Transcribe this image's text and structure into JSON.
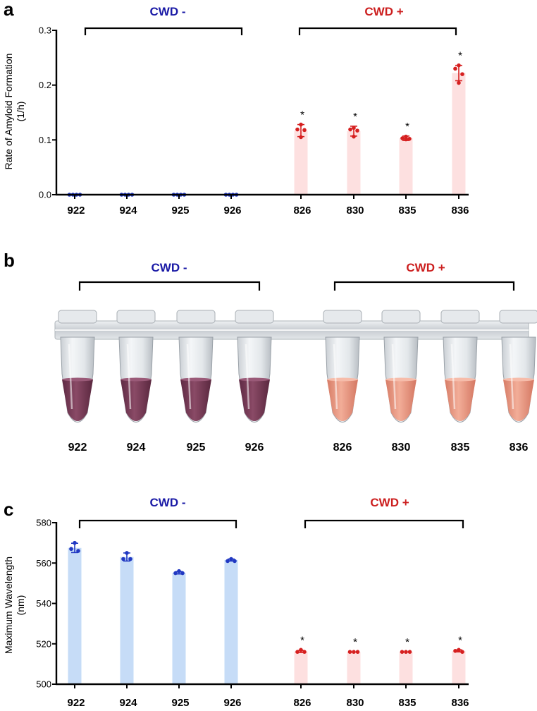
{
  "colors": {
    "cwd_neg": "#1a1aa6",
    "cwd_pos": "#cc1f1f",
    "neg_bar": "#c6dcf7",
    "pos_bar": "#fde0e0",
    "neg_dot": "#2138c2",
    "pos_dot": "#d62020",
    "tube_purple": "#7a3d57",
    "tube_pink": "#e99883"
  },
  "groups": {
    "negative": "CWD -",
    "positive": "CWD +"
  },
  "chart_data": [
    {
      "panel": "a",
      "type": "bar",
      "title": "",
      "ylabel_line1": "Rate of Amyloid Formation",
      "ylabel_line2": "(1/h)",
      "xlabel": "",
      "ylim": [
        0,
        0.3
      ],
      "yticks": [
        0.0,
        0.1,
        0.2,
        0.3
      ],
      "yticklabels": [
        "0.0",
        "0.1",
        "0.2",
        "0.3"
      ],
      "categories": [
        "922",
        "924",
        "925",
        "926",
        "826",
        "830",
        "835",
        "836"
      ],
      "values": [
        0,
        0,
        0,
        0,
        0.117,
        0.116,
        0.103,
        0.222
      ],
      "errors": [
        0,
        0,
        0,
        0,
        0.011,
        0.009,
        0.004,
        0.014
      ],
      "points": [
        [
          0,
          0,
          0,
          0
        ],
        [
          0,
          0,
          0,
          0
        ],
        [
          0,
          0,
          0,
          0
        ],
        [
          0,
          0,
          0,
          0
        ],
        [
          0.128,
          0.119,
          0.118,
          0.105
        ],
        [
          0.122,
          0.119,
          0.117,
          0.106
        ],
        [
          0.106,
          0.103,
          0.102,
          0.101
        ],
        [
          0.236,
          0.23,
          0.22,
          0.204
        ]
      ],
      "groups": [
        "neg",
        "neg",
        "neg",
        "neg",
        "pos",
        "pos",
        "pos",
        "pos"
      ],
      "significance": [
        "",
        "",
        "",
        "",
        "*",
        "*",
        "*",
        "*"
      ]
    },
    {
      "panel": "c",
      "type": "bar",
      "title": "",
      "ylabel_line1": "Maximum Wavelength",
      "ylabel_line2": "(nm)",
      "xlabel": "",
      "ylim": [
        500,
        580
      ],
      "yticks": [
        500,
        520,
        540,
        560,
        580
      ],
      "yticklabels": [
        "500",
        "520",
        "540",
        "560",
        "580"
      ],
      "categories": [
        "922",
        "924",
        "925",
        "926",
        "826",
        "830",
        "835",
        "836"
      ],
      "values": [
        567.5,
        563,
        555.2,
        561.5,
        516.2,
        516,
        516,
        516.5
      ],
      "errors": [
        2.3,
        2.0,
        0.6,
        0.5,
        0.5,
        0,
        0,
        0.5
      ],
      "points": [
        [
          570,
          567,
          566
        ],
        [
          565,
          562,
          562
        ],
        [
          556,
          555,
          555
        ],
        [
          562,
          561,
          561
        ],
        [
          517,
          516,
          516
        ],
        [
          516,
          516,
          516
        ],
        [
          516,
          516,
          516
        ],
        [
          517,
          516.5,
          516
        ]
      ],
      "groups": [
        "neg",
        "neg",
        "neg",
        "neg",
        "pos",
        "pos",
        "pos",
        "pos"
      ],
      "significance": [
        "",
        "",
        "",
        "",
        "*",
        "*",
        "*",
        "*"
      ]
    }
  ],
  "photo_panel": {
    "panel": "b",
    "tube_labels": [
      "922",
      "924",
      "925",
      "926",
      "826",
      "830",
      "835",
      "836"
    ],
    "tube_colors": [
      "purple",
      "purple",
      "purple",
      "purple",
      "pink",
      "pink",
      "pink",
      "pink"
    ]
  }
}
